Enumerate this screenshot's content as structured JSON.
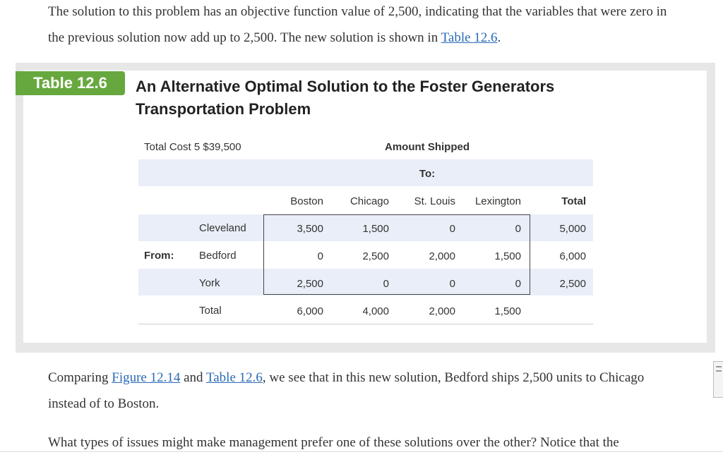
{
  "intro": {
    "text_before": "The solution to this problem has an objective function value of 2,500, indicating that the variables that were zero in the previous solution now add up to 2,500. The new solution is shown in ",
    "link": "Table 12.6",
    "text_after": "."
  },
  "table": {
    "badge": "Table 12.6",
    "title": "An Alternative Optimal Solution to the Foster Generators Transportation Problem",
    "total_cost": "Total Cost 5 $39,500",
    "amount_shipped": "Amount Shipped",
    "to": "To:",
    "from": "From:",
    "columns": [
      "Boston",
      "Chicago",
      "St. Louis",
      "Lexington",
      "Total"
    ],
    "rows": [
      {
        "origin": "Cleveland",
        "values": [
          "3,500",
          "1,500",
          "0",
          "0",
          "5,000"
        ]
      },
      {
        "origin": "Bedford",
        "values": [
          "0",
          "2,500",
          "2,000",
          "1,500",
          "6,000"
        ]
      },
      {
        "origin": "York",
        "values": [
          "2,500",
          "0",
          "0",
          "0",
          "2,500"
        ]
      },
      {
        "origin": "Total",
        "values": [
          "6,000",
          "4,000",
          "2,000",
          "1,500",
          ""
        ]
      }
    ]
  },
  "compare": {
    "text1": "Comparing ",
    "link1": "Figure 12.14",
    "text2": " and ",
    "link2": "Table 12.6",
    "text3": ", we see that in this new solution, Bedford ships 2,500 units to Chicago instead of to Boston."
  },
  "question": {
    "text": "What types of issues might make management prefer one of these solutions over the other? Notice that the"
  },
  "colors": {
    "badge_green": "#67a83e",
    "link_blue": "#2a6ab5",
    "band_blue": "#e9eef8",
    "frame_gray": "#e7e7e7"
  }
}
